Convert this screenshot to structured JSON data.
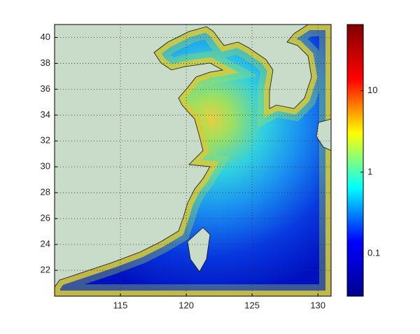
{
  "map": {
    "xlim": [
      110,
      131
    ],
    "ylim": [
      20,
      41
    ],
    "xticks": [
      115,
      120,
      125,
      130
    ],
    "yticks": [
      22,
      24,
      26,
      28,
      30,
      32,
      34,
      36,
      38,
      40
    ],
    "grid": true,
    "colorbar": {
      "lim": [
        0.03,
        65
      ],
      "ticks": [
        0.1,
        1,
        10
      ],
      "log": true,
      "colormap": "jet"
    }
  }
}
